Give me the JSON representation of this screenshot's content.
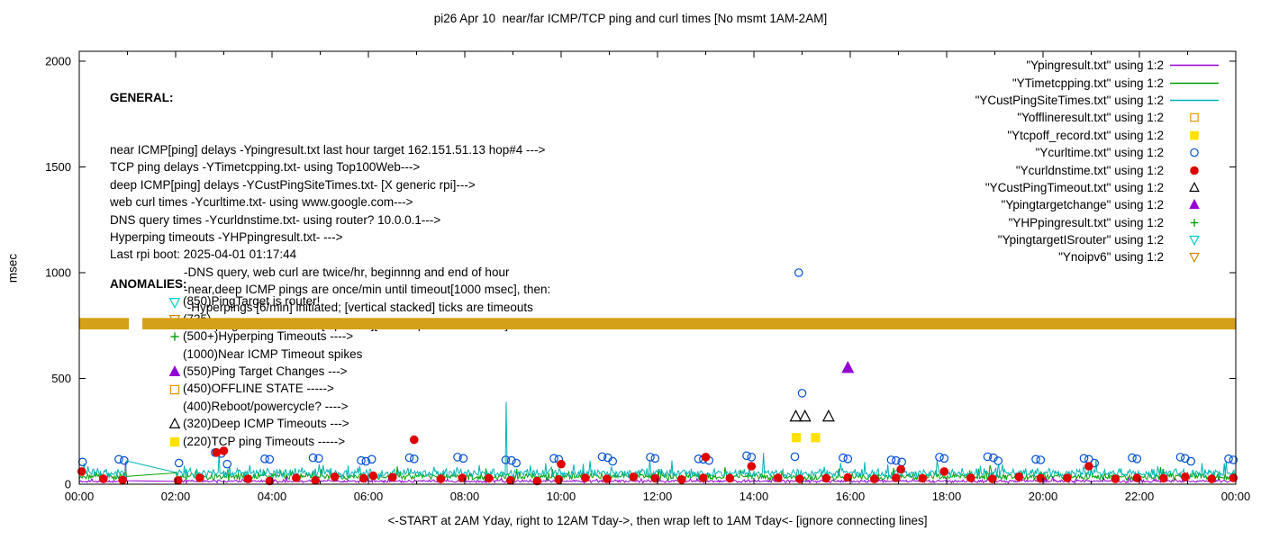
{
  "chart_data": {
    "type": "line+scatter",
    "title": "pi26 Apr 10  near/far ICMP/TCP ping and curl times [No msmt 1AM-2AM]",
    "xlabel": "<-START at 2AM Yday, right to 12AM Tday->, then wrap left to 1AM Tday<- [ignore connecting lines]",
    "ylabel": "msec",
    "xlim": [
      0,
      24
    ],
    "ylim": [
      0,
      2000
    ],
    "grid": false,
    "legend_position": "top-right-inside",
    "x_ticks": [
      {
        "h": 0,
        "label": "00:00"
      },
      {
        "h": 2,
        "label": "02:00"
      },
      {
        "h": 4,
        "label": "04:00"
      },
      {
        "h": 6,
        "label": "06:00"
      },
      {
        "h": 8,
        "label": "08:00"
      },
      {
        "h": 10,
        "label": "10:00"
      },
      {
        "h": 12,
        "label": "12:00"
      },
      {
        "h": 14,
        "label": "14:00"
      },
      {
        "h": 16,
        "label": "16:00"
      },
      {
        "h": 18,
        "label": "18:00"
      },
      {
        "h": 20,
        "label": "20:00"
      },
      {
        "h": 22,
        "label": "22:00"
      },
      {
        "h": 24,
        "label": "00:00"
      }
    ],
    "x_minor_every": 1,
    "y_ticks": [
      {
        "v": 0,
        "label": "0"
      },
      {
        "v": 500,
        "label": "500"
      },
      {
        "v": 1000,
        "label": "1000"
      },
      {
        "v": 1500,
        "label": "1500"
      },
      {
        "v": 2000,
        "label": "2000"
      }
    ],
    "legend": [
      {
        "label": "\"Ypingresult.txt\" using 1:2",
        "marker": "line",
        "color": "#9400d3",
        "filled": false
      },
      {
        "label": "\"YTimetcpping.txt\" using 1:2",
        "marker": "line",
        "color": "#00a000",
        "filled": false
      },
      {
        "label": "\"YCustPingSiteTimes.txt\" using 1:2",
        "marker": "line",
        "color": "#00b3b3",
        "filled": false
      },
      {
        "label": "\"Yofflineresult.txt\" using 1:2",
        "marker": "square",
        "color": "#e69500",
        "filled": false
      },
      {
        "label": "\"Ytcpoff_record.txt\" using 1:2",
        "marker": "square",
        "color": "#ffe000",
        "filled": true
      },
      {
        "label": "\"Ycurltime.txt\" using 1:2",
        "marker": "circle",
        "color": "#0050d0",
        "filled": false
      },
      {
        "label": "\"Ycurldnstime.txt\" using 1:2",
        "marker": "circle",
        "color": "#e00000",
        "filled": true
      },
      {
        "label": "\"YCustPingTimeout.txt\" using 1:2",
        "marker": "triangle-up",
        "color": "#000000",
        "filled": false
      },
      {
        "label": "\"Ypingtargetchange\" using 1:2",
        "marker": "triangle-up",
        "color": "#9400d3",
        "filled": true
      },
      {
        "label": "\"YHPpingresult.txt\" using 1:2",
        "marker": "plus",
        "color": "#00a000",
        "filled": false
      },
      {
        "label": "\"YpingtargetISrouter\" using 1:2",
        "marker": "triangle-down",
        "color": "#00cccc",
        "filled": false
      },
      {
        "label": "\"Ynoipv6\" using 1:2",
        "marker": "triangle-down",
        "color": "#cc8800",
        "filled": false
      }
    ],
    "band": {
      "name": "Ynoipv6-band",
      "color": "#d4a017",
      "value": 760,
      "y_low": 732,
      "y_high": 786,
      "segments": [
        [
          0,
          1.03
        ],
        [
          1.31,
          24
        ]
      ]
    },
    "line_series": [
      {
        "name": "Ypingresult.txt",
        "color": "#9400d3",
        "baseline": 14,
        "amplitude": 6,
        "seed": 101,
        "gaps": [
          [
            1.0,
            2.0
          ]
        ],
        "spikes": [
          [
            0.96,
            105
          ],
          [
            4.3,
            40
          ],
          [
            9.5,
            35
          ],
          [
            20.2,
            38
          ]
        ]
      },
      {
        "name": "YTimetcpping.txt",
        "color": "#00a000",
        "baseline": 36,
        "amplitude": 15,
        "seed": 202,
        "gaps": [
          [
            1.0,
            2.0
          ]
        ],
        "spikes": [
          [
            0.96,
            80
          ],
          [
            6.6,
            85
          ],
          [
            13.4,
            80
          ],
          [
            18.9,
            90
          ]
        ]
      },
      {
        "name": "YCustPingSiteTimes.txt",
        "color": "#00b3b3",
        "baseline": 52,
        "amplitude": 20,
        "seed": 303,
        "gaps": [
          [
            1.0,
            2.0
          ]
        ],
        "spikes": [
          [
            0.1,
            100
          ],
          [
            0.96,
            60
          ],
          [
            2.9,
            150
          ],
          [
            8.85,
            390
          ],
          [
            10.6,
            110
          ],
          [
            12.3,
            112
          ],
          [
            14.2,
            148
          ],
          [
            16.3,
            105
          ],
          [
            17.8,
            112
          ],
          [
            21.1,
            118
          ],
          [
            23.3,
            100
          ]
        ]
      }
    ],
    "scatter_series": [
      {
        "name": "Ycurltime.txt",
        "marker": "circle",
        "filled": false,
        "color": "#0050d0",
        "points": [
          [
            0.07,
            105
          ],
          [
            0.82,
            118
          ],
          [
            0.93,
            112
          ],
          [
            2.07,
            100
          ],
          [
            2.82,
            150
          ],
          [
            2.95,
            145
          ],
          [
            3.07,
            95
          ],
          [
            3.85,
            120
          ],
          [
            3.95,
            118
          ],
          [
            4.85,
            125
          ],
          [
            4.97,
            122
          ],
          [
            5.85,
            112
          ],
          [
            5.95,
            108
          ],
          [
            6.07,
            118
          ],
          [
            6.85,
            125
          ],
          [
            6.95,
            120
          ],
          [
            7.85,
            128
          ],
          [
            7.97,
            122
          ],
          [
            8.85,
            115
          ],
          [
            8.97,
            112
          ],
          [
            9.07,
            100
          ],
          [
            9.85,
            122
          ],
          [
            9.95,
            118
          ],
          [
            10.85,
            130
          ],
          [
            10.97,
            125
          ],
          [
            11.07,
            108
          ],
          [
            11.85,
            128
          ],
          [
            11.95,
            122
          ],
          [
            12.85,
            120
          ],
          [
            12.95,
            118
          ],
          [
            13.07,
            112
          ],
          [
            13.85,
            135
          ],
          [
            13.95,
            128
          ],
          [
            14.85,
            130
          ],
          [
            14.93,
            1000
          ],
          [
            15.0,
            430
          ],
          [
            15.85,
            125
          ],
          [
            15.95,
            120
          ],
          [
            16.85,
            115
          ],
          [
            16.95,
            112
          ],
          [
            17.07,
            105
          ],
          [
            17.85,
            128
          ],
          [
            17.95,
            122
          ],
          [
            18.85,
            130
          ],
          [
            18.97,
            125
          ],
          [
            19.07,
            110
          ],
          [
            19.85,
            118
          ],
          [
            19.95,
            115
          ],
          [
            20.85,
            122
          ],
          [
            20.95,
            118
          ],
          [
            21.07,
            100
          ],
          [
            21.85,
            125
          ],
          [
            21.95,
            120
          ],
          [
            22.85,
            128
          ],
          [
            22.95,
            122
          ],
          [
            23.07,
            108
          ],
          [
            23.85,
            120
          ],
          [
            23.95,
            115
          ]
        ]
      },
      {
        "name": "Ycurldnstime.txt",
        "marker": "circle",
        "filled": true,
        "color": "#e00000",
        "points": [
          [
            0.05,
            60
          ],
          [
            0.5,
            25
          ],
          [
            0.9,
            20
          ],
          [
            2.05,
            18
          ],
          [
            2.5,
            30
          ],
          [
            2.85,
            150
          ],
          [
            3.0,
            158
          ],
          [
            3.5,
            25
          ],
          [
            3.95,
            15
          ],
          [
            4.5,
            30
          ],
          [
            4.9,
            18
          ],
          [
            5.3,
            35
          ],
          [
            5.9,
            28
          ],
          [
            6.1,
            40
          ],
          [
            6.5,
            33
          ],
          [
            6.95,
            210
          ],
          [
            7.5,
            25
          ],
          [
            7.95,
            30
          ],
          [
            8.5,
            28
          ],
          [
            8.95,
            18
          ],
          [
            9.5,
            15
          ],
          [
            9.95,
            22
          ],
          [
            10.0,
            95
          ],
          [
            10.5,
            30
          ],
          [
            10.95,
            25
          ],
          [
            11.5,
            35
          ],
          [
            11.95,
            28
          ],
          [
            12.5,
            22
          ],
          [
            12.95,
            30
          ],
          [
            13.0,
            128
          ],
          [
            13.5,
            28
          ],
          [
            13.95,
            85
          ],
          [
            14.5,
            30
          ],
          [
            14.95,
            25
          ],
          [
            15.5,
            28
          ],
          [
            15.95,
            32
          ],
          [
            16.5,
            25
          ],
          [
            16.95,
            30
          ],
          [
            17.05,
            70
          ],
          [
            17.5,
            28
          ],
          [
            17.95,
            60
          ],
          [
            18.5,
            30
          ],
          [
            18.95,
            25
          ],
          [
            19.5,
            35
          ],
          [
            19.95,
            28
          ],
          [
            20.5,
            30
          ],
          [
            20.95,
            85
          ],
          [
            21.5,
            25
          ],
          [
            21.95,
            30
          ],
          [
            22.5,
            28
          ],
          [
            22.95,
            35
          ],
          [
            23.5,
            25
          ],
          [
            23.95,
            30
          ]
        ]
      },
      {
        "name": "YCustPingTimeout.txt",
        "marker": "triangle-up",
        "filled": false,
        "color": "#000000",
        "points": [
          [
            14.87,
            320
          ],
          [
            15.06,
            320
          ],
          [
            15.55,
            320
          ]
        ]
      },
      {
        "name": "Ypingtargetchange",
        "marker": "triangle-up",
        "filled": true,
        "color": "#9400d3",
        "points": [
          [
            15.95,
            550
          ]
        ]
      },
      {
        "name": "Ytcpoff_record.txt",
        "marker": "square",
        "filled": true,
        "color": "#ffe000",
        "points": [
          [
            14.88,
            220
          ],
          [
            15.28,
            220
          ]
        ]
      }
    ],
    "annotations": {
      "general": {
        "heading": "GENERAL:",
        "lines": [
          {
            "text": "near ICMP[ping] delays -Ypingresult.txt last hour target 162.151.51.13 hop#4 --->",
            "indent": 0
          },
          {
            "text": "TCP ping delays -YTimetcpping.txt- using Top100Web--->",
            "indent": 0
          },
          {
            "text": "deep ICMP[ping] delays -YCustPingSiteTimes.txt- [X generic rpi]--->",
            "indent": 0
          },
          {
            "text": "web curl times -Ycurltime.txt- using www.google.com--->",
            "indent": 0
          },
          {
            "text": "DNS query times -Ycurldnstime.txt- using router? 10.0.0.1--->",
            "indent": 0
          },
          {
            "text": "Hyperping timeouts -YHPpingresult.txt- --->",
            "indent": 0
          },
          {
            "text": "Last rpi boot: 2025-04-01 01:17:44",
            "indent": 0
          },
          {
            "text": "-DNS query, web curl are twice/hr, beginnng and end of hour",
            "indent": 1
          },
          {
            "text": "-near,deep ICMP pings are once/min until timeout[1000 msec], then:",
            "indent": 1
          },
          {
            "text": " -Hyperpings [6/min] initiated; [vertical stacked] ticks are timeouts",
            "indent": 1
          },
          {
            "text": "-TCP pings are once/min [if plotted][use Ytcpoff for timeouts]",
            "indent": 1
          }
        ]
      },
      "anomalies": {
        "heading": "ANOMALIES:",
        "items": [
          {
            "icon": "triangle-down",
            "icon_color": "#00cccc",
            "icon_filled": false,
            "text": "(850)PingTarget is router!"
          },
          {
            "icon": "triangle-down",
            "icon_color": "#cc8800",
            "icon_filled": false,
            "text": "(735)"
          },
          {
            "icon": "plus",
            "icon_color": "#00a000",
            "icon_filled": false,
            "text": "(500+)Hyperping Timeouts ---->"
          },
          {
            "icon": "none",
            "icon_color": "",
            "icon_filled": false,
            "text": "(1000)Near ICMP Timeout spikes"
          },
          {
            "icon": "triangle-up",
            "icon_color": "#9400d3",
            "icon_filled": true,
            "text": "(550)Ping Target Changes --->"
          },
          {
            "icon": "square",
            "icon_color": "#e69500",
            "icon_filled": false,
            "text": "(450)OFFLINE STATE ----->"
          },
          {
            "icon": "none",
            "icon_color": "",
            "icon_filled": false,
            "text": "(400)Reboot/powercycle? ---->"
          },
          {
            "icon": "triangle-up",
            "icon_color": "#000000",
            "icon_filled": false,
            "text": "(320)Deep ICMP Timeouts --->"
          },
          {
            "icon": "square",
            "icon_color": "#ffe000",
            "icon_filled": true,
            "text": "(220)TCP ping Timeouts ----->"
          }
        ]
      }
    }
  }
}
